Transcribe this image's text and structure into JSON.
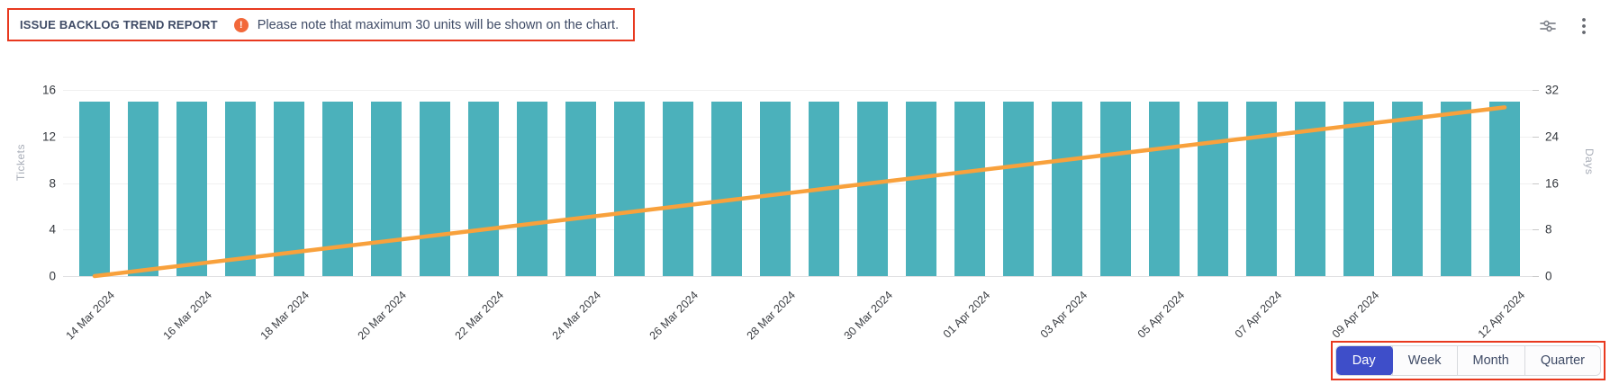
{
  "header": {
    "title": "ISSUE BACKLOG TREND REPORT",
    "warning_glyph": "!",
    "note": "Please note that maximum 30 units will be shown on the chart."
  },
  "chart_data": {
    "type": "bar",
    "subtype": "bar+line dual axis",
    "categories": [
      "14 Mar 2024",
      "15 Mar 2024",
      "16 Mar 2024",
      "17 Mar 2024",
      "18 Mar 2024",
      "19 Mar 2024",
      "20 Mar 2024",
      "21 Mar 2024",
      "22 Mar 2024",
      "23 Mar 2024",
      "24 Mar 2024",
      "25 Mar 2024",
      "26 Mar 2024",
      "27 Mar 2024",
      "28 Mar 2024",
      "29 Mar 2024",
      "30 Mar 2024",
      "31 Mar 2024",
      "01 Apr 2024",
      "02 Apr 2024",
      "03 Apr 2024",
      "04 Apr 2024",
      "05 Apr 2024",
      "06 Apr 2024",
      "07 Apr 2024",
      "08 Apr 2024",
      "09 Apr 2024",
      "10 Apr 2024",
      "11 Apr 2024",
      "12 Apr 2024"
    ],
    "series": [
      {
        "name": "Tickets",
        "type": "bar",
        "axis": "left",
        "values": [
          15,
          15,
          15,
          15,
          15,
          15,
          15,
          15,
          15,
          15,
          15,
          15,
          15,
          15,
          15,
          15,
          15,
          15,
          15,
          15,
          15,
          15,
          15,
          15,
          15,
          15,
          15,
          15,
          15,
          15
        ]
      },
      {
        "name": "Days",
        "type": "line",
        "axis": "right",
        "values": [
          0,
          1,
          2,
          3,
          4,
          5,
          6,
          7,
          8,
          9,
          10,
          11,
          12,
          13,
          14,
          15,
          16,
          17,
          18,
          19,
          20,
          21,
          22,
          23,
          24,
          25,
          26,
          27,
          28,
          29
        ]
      }
    ],
    "left_axis": {
      "title": "Tickets",
      "ticks": [
        0,
        4,
        8,
        12,
        16
      ],
      "max": 16
    },
    "right_axis": {
      "title": "Days",
      "ticks": [
        0,
        8,
        16,
        24,
        32
      ],
      "max": 32
    },
    "x_label_indices": [
      0,
      2,
      4,
      6,
      8,
      10,
      12,
      14,
      16,
      18,
      20,
      22,
      24,
      26,
      29
    ],
    "grid": true,
    "legend": "none",
    "max_units_shown": 30
  },
  "controls": {
    "options": [
      "Day",
      "Week",
      "Month",
      "Quarter"
    ],
    "selected": "Day"
  },
  "colors": {
    "bar": "#4bb1bb",
    "line": "#f8a13c",
    "annotation": "#e8391f",
    "warning": "#f2683a",
    "selected": "#3e4ec9",
    "title_text": "#3f4b66",
    "axis_text": "#35393f",
    "axis_title_text": "#a9aeb8"
  }
}
